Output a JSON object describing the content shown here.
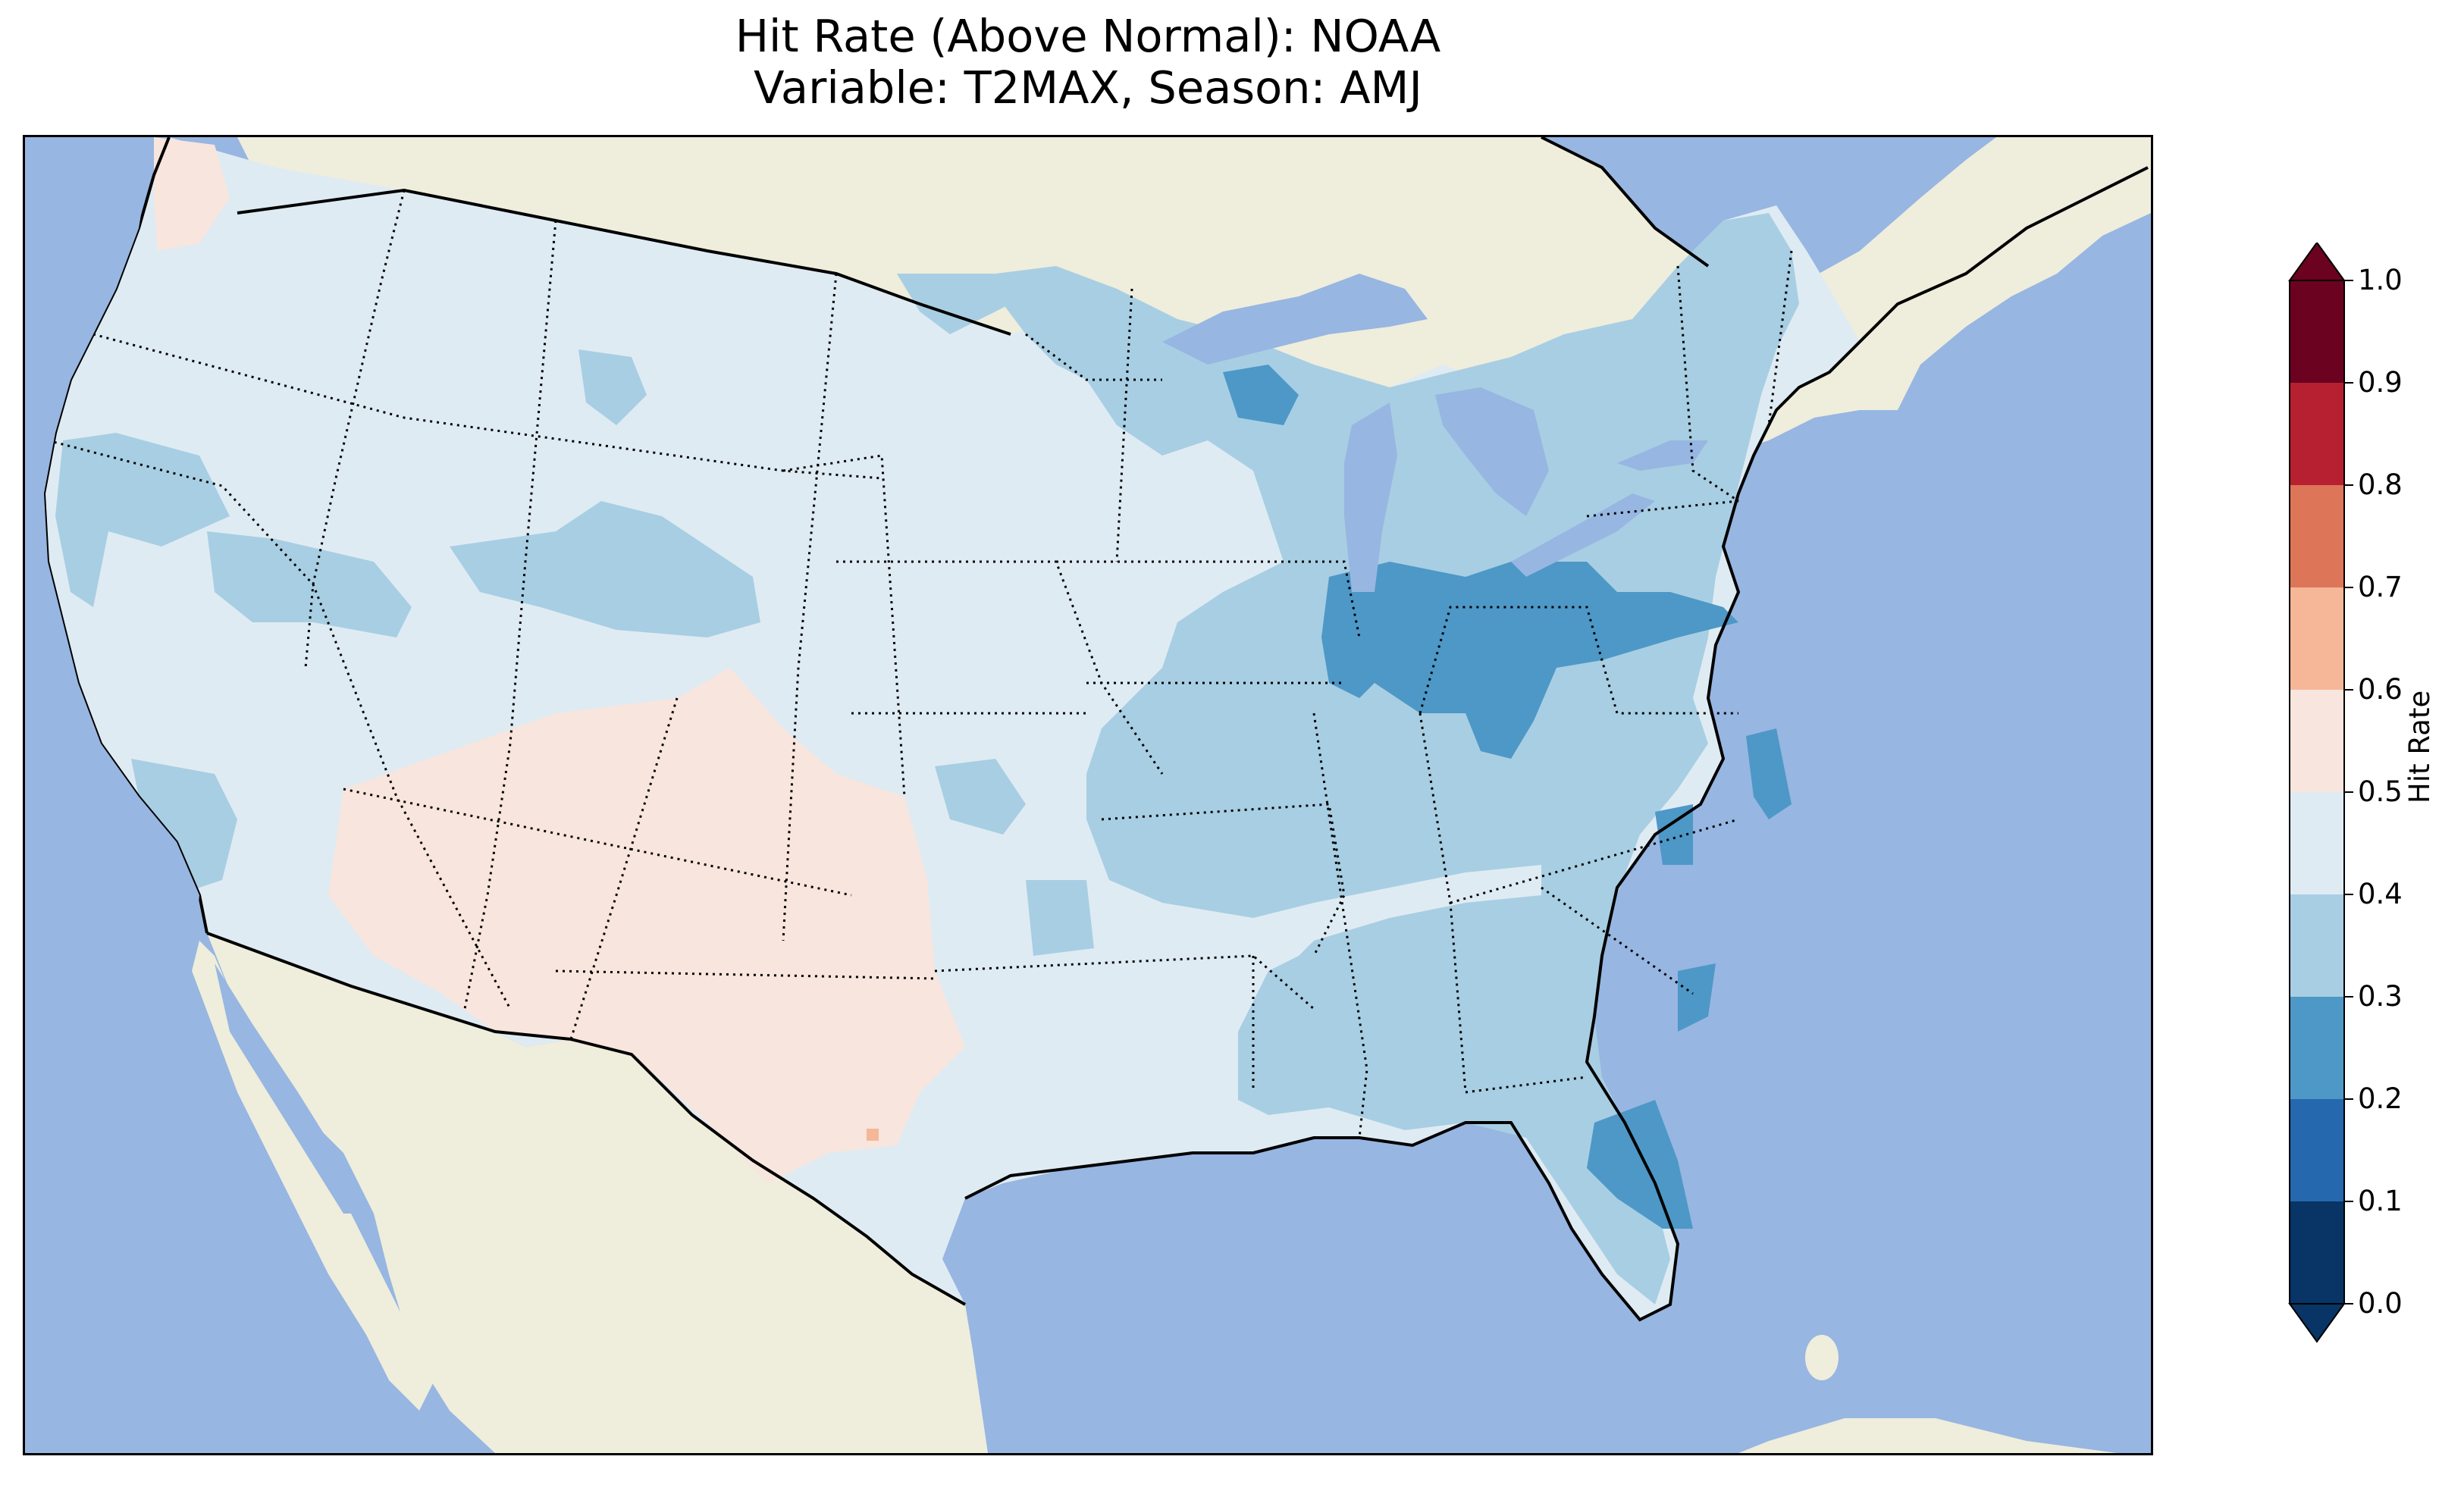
{
  "title": {
    "line1": "Hit Rate (Above Normal): NOAA",
    "line2": "Variable: T2MAX, Season: AMJ"
  },
  "map": {
    "ocean_color": "#97b6e1",
    "land_color": "#efeddc",
    "border_style": "dotted"
  },
  "colorbar": {
    "label": "Hit Rate",
    "extend": "both",
    "ticks": [
      "0.0",
      "0.1",
      "0.2",
      "0.3",
      "0.4",
      "0.5",
      "0.6",
      "0.7",
      "0.8",
      "0.9",
      "1.0"
    ],
    "colors": [
      "#053061",
      "#2166ac",
      "#4393c3",
      "#92c5de",
      "#d1e5f0",
      "#f7f7f7",
      "#fddbc7",
      "#f4a582",
      "#d6604d",
      "#b2182b",
      "#67001f"
    ],
    "bins": [
      {
        "range": "0.0-0.1",
        "color": "#083466"
      },
      {
        "range": "0.1-0.2",
        "color": "#2568ad"
      },
      {
        "range": "0.2-0.3",
        "color": "#4d98c7"
      },
      {
        "range": "0.3-0.4",
        "color": "#a8cee3"
      },
      {
        "range": "0.4-0.5",
        "color": "#dfebf3"
      },
      {
        "range": "0.5-0.6",
        "color": "#f8e5dd"
      },
      {
        "range": "0.6-0.7",
        "color": "#f5b797"
      },
      {
        "range": "0.7-0.8",
        "color": "#dd7659"
      },
      {
        "range": "0.8-0.9",
        "color": "#b72030"
      },
      {
        "range": "0.9-1.0",
        "color": "#6a0220"
      }
    ]
  },
  "regions": [
    {
      "name": "Northwest / Great Basin / Plains",
      "hit_rate_bin": "0.4-0.5"
    },
    {
      "name": "Southwest (Arizona, New Mexico, West Texas)",
      "hit_rate_bin": "0.5-0.6"
    },
    {
      "name": "Pacific Northwest coast",
      "hit_rate_bin": "0.5-0.6"
    },
    {
      "name": "Upper Midwest / Northeast",
      "hit_rate_bin": "0.3-0.4"
    },
    {
      "name": "Ohio Valley / Pennsylvania",
      "hit_rate_bin": "0.2-0.3"
    },
    {
      "name": "Southeast / Florida",
      "hit_rate_bin": "0.3-0.4"
    },
    {
      "name": "Florida central / North Carolina coast",
      "hit_rate_bin": "0.2-0.3"
    }
  ]
}
